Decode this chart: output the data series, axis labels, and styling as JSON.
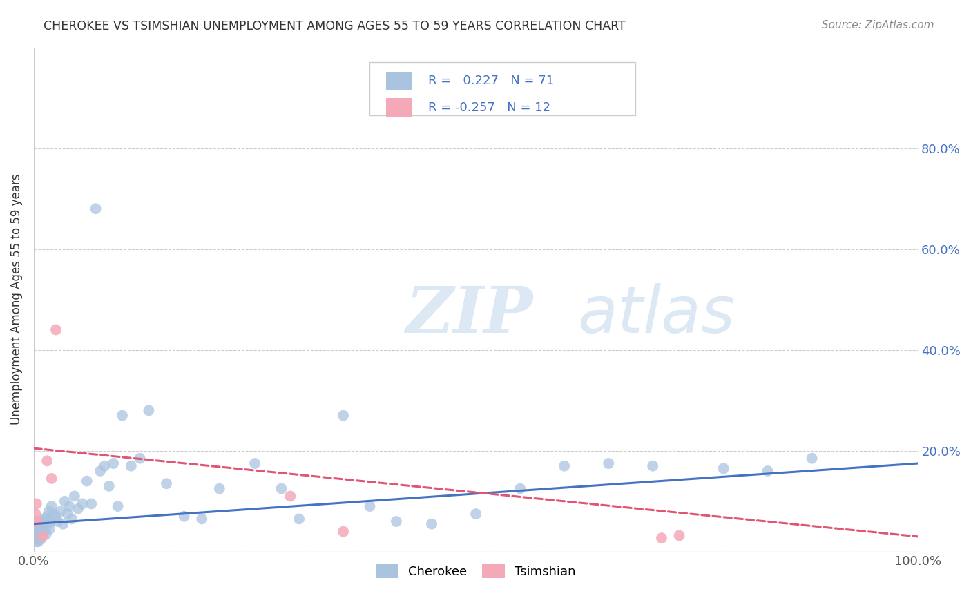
{
  "title": "CHEROKEE VS TSIMSHIAN UNEMPLOYMENT AMONG AGES 55 TO 59 YEARS CORRELATION CHART",
  "source": "Source: ZipAtlas.com",
  "ylabel": "Unemployment Among Ages 55 to 59 years",
  "xlim": [
    0,
    1.0
  ],
  "ylim": [
    0,
    1.0
  ],
  "xticks": [
    0.0,
    0.2,
    0.4,
    0.6,
    0.8,
    1.0
  ],
  "xticklabels": [
    "0.0%",
    "",
    "",
    "",
    "",
    "100.0%"
  ],
  "yticks": [
    0.0,
    0.2,
    0.4,
    0.6,
    0.8
  ],
  "yticklabels": [
    "",
    "20.0%",
    "40.0%",
    "60.0%",
    "80.0%"
  ],
  "grid_color": "#cccccc",
  "background_color": "#ffffff",
  "watermark_zip": "ZIP",
  "watermark_atlas": "atlas",
  "legend_r1": " 0.227",
  "legend_n1": "71",
  "legend_r2": "-0.257",
  "legend_n2": "12",
  "legend_label1": "Cherokee",
  "legend_label2": "Tsimshian",
  "cherokee_color": "#aac4e0",
  "tsimshian_color": "#f4a8b8",
  "cherokee_line_color": "#4472c4",
  "tsimshian_line_color": "#e05575",
  "cherokee_scatter_x": [
    0.001,
    0.002,
    0.002,
    0.003,
    0.003,
    0.004,
    0.004,
    0.005,
    0.005,
    0.006,
    0.006,
    0.007,
    0.007,
    0.008,
    0.008,
    0.009,
    0.01,
    0.01,
    0.011,
    0.012,
    0.013,
    0.014,
    0.015,
    0.016,
    0.017,
    0.018,
    0.019,
    0.02,
    0.022,
    0.025,
    0.027,
    0.03,
    0.033,
    0.035,
    0.038,
    0.04,
    0.043,
    0.046,
    0.05,
    0.055,
    0.06,
    0.065,
    0.07,
    0.075,
    0.08,
    0.085,
    0.09,
    0.095,
    0.1,
    0.11,
    0.12,
    0.13,
    0.15,
    0.17,
    0.19,
    0.21,
    0.25,
    0.28,
    0.3,
    0.35,
    0.38,
    0.41,
    0.45,
    0.5,
    0.55,
    0.6,
    0.65,
    0.7,
    0.78,
    0.83,
    0.88
  ],
  "cherokee_scatter_y": [
    0.03,
    0.025,
    0.04,
    0.02,
    0.035,
    0.025,
    0.045,
    0.02,
    0.06,
    0.03,
    0.05,
    0.04,
    0.03,
    0.055,
    0.025,
    0.05,
    0.035,
    0.06,
    0.04,
    0.065,
    0.045,
    0.035,
    0.07,
    0.055,
    0.08,
    0.045,
    0.06,
    0.09,
    0.075,
    0.07,
    0.06,
    0.08,
    0.055,
    0.1,
    0.075,
    0.09,
    0.065,
    0.11,
    0.085,
    0.095,
    0.14,
    0.095,
    0.68,
    0.16,
    0.17,
    0.13,
    0.175,
    0.09,
    0.27,
    0.17,
    0.185,
    0.28,
    0.135,
    0.07,
    0.065,
    0.125,
    0.175,
    0.125,
    0.065,
    0.27,
    0.09,
    0.06,
    0.055,
    0.075,
    0.125,
    0.17,
    0.175,
    0.17,
    0.165,
    0.16,
    0.185
  ],
  "tsimshian_scatter_x": [
    0.001,
    0.002,
    0.003,
    0.004,
    0.01,
    0.015,
    0.02,
    0.025,
    0.29,
    0.35,
    0.71,
    0.73
  ],
  "tsimshian_scatter_y": [
    0.06,
    0.075,
    0.095,
    0.06,
    0.03,
    0.18,
    0.145,
    0.44,
    0.11,
    0.04,
    0.027,
    0.032
  ],
  "cherokee_trend_x": [
    0.0,
    1.0
  ],
  "cherokee_trend_y": [
    0.055,
    0.175
  ],
  "tsimshian_trend_x": [
    0.0,
    1.0
  ],
  "tsimshian_trend_y": [
    0.205,
    0.03
  ]
}
